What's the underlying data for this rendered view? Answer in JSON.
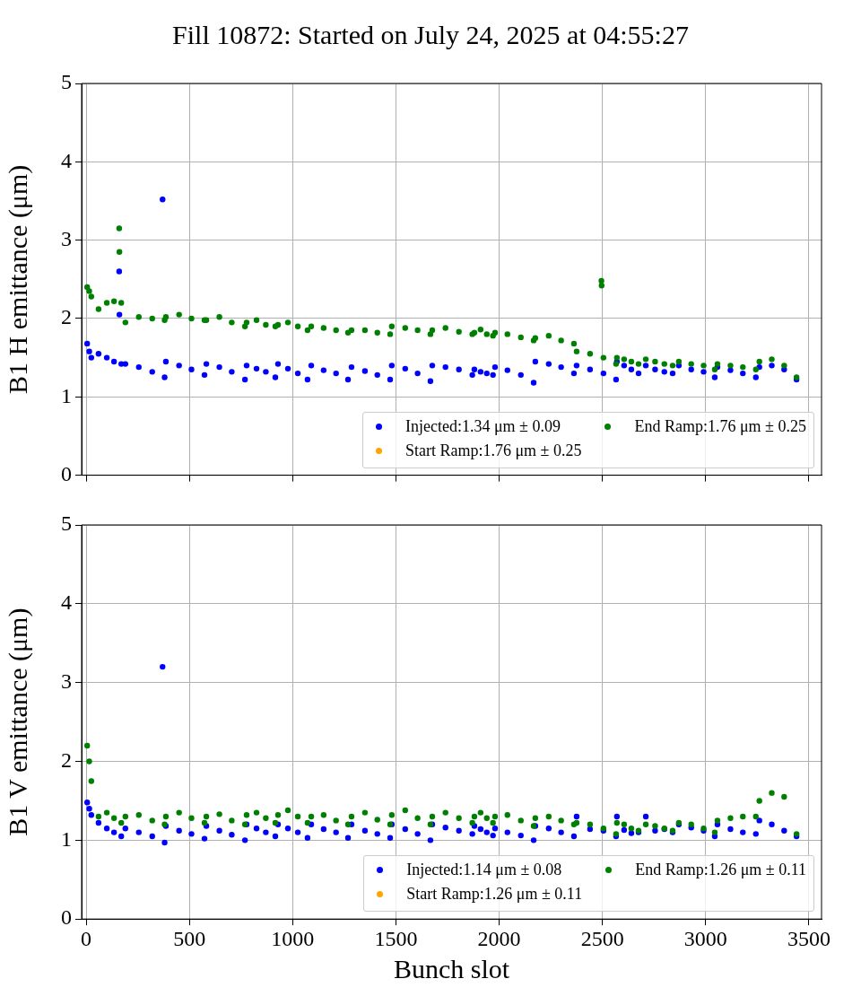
{
  "chart_data": [
    {
      "type": "scatter",
      "title": "Fill 10872: Started on July 24, 2025 at 04:55:27",
      "ylabel": "B1 H emittance (μm)",
      "xlim": [
        -22,
        3561
      ],
      "xticks": [
        {
          "value": 0,
          "label": null
        },
        {
          "value": 500,
          "label": null
        },
        {
          "value": 1000,
          "label": null
        },
        {
          "value": 1500,
          "label": null
        },
        {
          "value": 2000,
          "label": null
        },
        {
          "value": 2500,
          "label": null
        },
        {
          "value": 3000,
          "label": null
        },
        {
          "value": 3500,
          "label": null
        }
      ],
      "ylim": [
        0,
        5
      ],
      "yticks": [
        0,
        1,
        2,
        3,
        4,
        5
      ],
      "tick_labels": "y",
      "grid": true,
      "legend": "bottom right",
      "marker": "circle",
      "x": [
        5,
        15,
        25,
        60,
        100,
        135,
        170,
        190,
        255,
        320,
        380,
        386,
        450,
        510,
        573,
        582,
        645,
        705,
        769,
        777,
        825,
        870,
        916,
        929,
        977,
        1025,
        1072,
        1090,
        1150,
        1210,
        1268,
        1285,
        1350,
        1410,
        1472,
        1480,
        1545,
        1605,
        1667,
        1676,
        1740,
        1805,
        1870,
        1880,
        1910,
        1940,
        1970,
        1980,
        2040,
        2105,
        2167,
        2175,
        2240,
        2300,
        2362,
        2375,
        2440,
        2505,
        2566,
        2570,
        2605,
        2640,
        2675,
        2710,
        2755,
        2800,
        2840,
        2870,
        2930,
        2990,
        3044,
        3057,
        3120,
        3180,
        3243,
        3260,
        3320,
        3380,
        3440,
        160,
        161,
        370,
        2495,
        2496
      ],
      "series": [
        {
          "name": "Injected:1.34 μm ± 0.09",
          "color": "#0000ff",
          "values": [
            1.68,
            1.58,
            1.5,
            1.55,
            1.5,
            1.45,
            1.42,
            1.42,
            1.38,
            1.32,
            1.25,
            1.45,
            1.4,
            1.35,
            1.28,
            1.42,
            1.38,
            1.32,
            1.22,
            1.4,
            1.36,
            1.32,
            1.25,
            1.42,
            1.36,
            1.3,
            1.22,
            1.4,
            1.34,
            1.3,
            1.22,
            1.38,
            1.33,
            1.28,
            1.22,
            1.4,
            1.36,
            1.3,
            1.2,
            1.4,
            1.38,
            1.35,
            1.28,
            1.35,
            1.32,
            1.3,
            1.28,
            1.38,
            1.34,
            1.28,
            1.18,
            1.45,
            1.42,
            1.38,
            1.3,
            1.4,
            1.35,
            1.3,
            1.22,
            1.45,
            1.4,
            1.35,
            1.3,
            1.4,
            1.35,
            1.32,
            1.3,
            1.4,
            1.35,
            1.32,
            1.25,
            1.38,
            1.34,
            1.3,
            1.25,
            1.38,
            1.4,
            1.35,
            1.22,
            2.6,
            2.05,
            3.52,
            null,
            null
          ]
        },
        {
          "name": "Start Ramp:1.76 μm ± 0.25",
          "color": "#ffa500",
          "values": [
            null,
            null,
            null,
            null,
            null,
            null,
            null,
            null,
            null,
            null,
            null,
            null,
            null,
            null,
            null,
            null,
            null,
            null,
            null,
            null,
            null,
            null,
            null,
            null,
            null,
            null,
            null,
            null,
            null,
            null,
            null,
            null,
            null,
            null,
            null,
            null,
            null,
            null,
            null,
            null,
            null,
            null,
            null,
            null,
            null,
            null,
            null,
            null,
            null,
            null,
            null,
            null,
            null,
            null,
            null,
            null,
            null,
            null,
            null,
            null,
            null,
            null,
            null,
            null,
            null,
            null,
            null,
            null,
            null,
            null,
            null,
            null,
            null,
            null,
            null,
            null,
            null,
            null,
            null,
            null,
            null,
            null,
            null,
            null
          ]
        },
        {
          "name": "End Ramp:1.76 μm ± 0.25",
          "color": "#008000",
          "values": [
            2.4,
            2.35,
            2.28,
            2.12,
            2.2,
            2.22,
            2.2,
            1.95,
            2.02,
            2.0,
            1.98,
            2.02,
            2.05,
            2.0,
            1.98,
            1.98,
            2.02,
            1.95,
            1.9,
            1.95,
            1.98,
            1.92,
            1.9,
            1.92,
            1.95,
            1.9,
            1.85,
            1.9,
            1.88,
            1.85,
            1.82,
            1.85,
            1.85,
            1.82,
            1.8,
            1.9,
            1.88,
            1.85,
            1.8,
            1.85,
            1.88,
            1.83,
            1.8,
            1.82,
            1.86,
            1.8,
            1.78,
            1.82,
            1.8,
            1.76,
            1.72,
            1.75,
            1.78,
            1.72,
            1.68,
            1.58,
            1.55,
            1.5,
            1.42,
            1.5,
            1.48,
            1.45,
            1.42,
            1.48,
            1.45,
            1.42,
            1.4,
            1.45,
            1.42,
            1.4,
            1.35,
            1.42,
            1.4,
            1.38,
            1.35,
            1.45,
            1.48,
            1.4,
            1.25,
            3.15,
            2.85,
            null,
            2.48,
            2.42
          ]
        }
      ]
    },
    {
      "type": "scatter",
      "xlabel": "Bunch slot",
      "ylabel": "B1 V emittance (μm)",
      "xlim": [
        -22,
        3561
      ],
      "xticks": [
        0,
        500,
        1000,
        1500,
        2000,
        2500,
        3000,
        3500
      ],
      "ylim": [
        0,
        5
      ],
      "yticks": [
        0,
        1,
        2,
        3,
        4,
        5
      ],
      "grid": true,
      "legend": "bottom right",
      "marker": "circle",
      "x": [
        5,
        15,
        25,
        60,
        100,
        135,
        170,
        190,
        255,
        320,
        380,
        386,
        450,
        510,
        573,
        582,
        645,
        705,
        769,
        777,
        825,
        870,
        916,
        929,
        977,
        1025,
        1072,
        1090,
        1150,
        1210,
        1268,
        1285,
        1350,
        1410,
        1472,
        1480,
        1545,
        1605,
        1667,
        1676,
        1740,
        1805,
        1870,
        1880,
        1910,
        1940,
        1970,
        1980,
        2040,
        2105,
        2167,
        2175,
        2240,
        2300,
        2362,
        2375,
        2440,
        2505,
        2566,
        2570,
        2605,
        2640,
        2675,
        2710,
        2755,
        2800,
        2840,
        2870,
        2930,
        2990,
        3044,
        3057,
        3120,
        3180,
        3243,
        3260,
        3320,
        3380,
        3440,
        370
      ],
      "series": [
        {
          "name": "Injected:1.14 μm ± 0.08",
          "color": "#0000ff",
          "values": [
            1.48,
            1.4,
            1.32,
            1.22,
            1.15,
            1.1,
            1.05,
            1.15,
            1.1,
            1.05,
            0.97,
            1.18,
            1.12,
            1.08,
            1.02,
            1.18,
            1.12,
            1.07,
            1.0,
            1.2,
            1.15,
            1.1,
            1.05,
            1.2,
            1.15,
            1.1,
            1.03,
            1.2,
            1.14,
            1.1,
            1.03,
            1.2,
            1.12,
            1.08,
            1.03,
            1.2,
            1.14,
            1.08,
            1.0,
            1.2,
            1.16,
            1.12,
            1.08,
            1.18,
            1.14,
            1.1,
            1.06,
            1.15,
            1.1,
            1.06,
            1.0,
            1.18,
            1.15,
            1.1,
            1.05,
            1.3,
            1.14,
            1.12,
            1.05,
            1.3,
            1.13,
            1.09,
            1.1,
            1.3,
            1.12,
            1.14,
            1.1,
            1.2,
            1.16,
            1.12,
            1.05,
            1.2,
            1.14,
            1.1,
            1.08,
            1.25,
            1.2,
            1.12,
            1.05,
            3.2
          ]
        },
        {
          "name": "Start Ramp:1.26 μm ± 0.11",
          "color": "#ffa500",
          "values": [
            null,
            null,
            null,
            null,
            null,
            null,
            null,
            null,
            null,
            null,
            null,
            null,
            null,
            null,
            null,
            null,
            null,
            null,
            null,
            null,
            null,
            null,
            null,
            null,
            null,
            null,
            null,
            null,
            null,
            null,
            null,
            null,
            null,
            null,
            null,
            null,
            null,
            null,
            null,
            null,
            null,
            null,
            null,
            null,
            null,
            null,
            null,
            null,
            null,
            null,
            null,
            null,
            null,
            null,
            null,
            null,
            null,
            null,
            null,
            null,
            null,
            null,
            null,
            null,
            null,
            null,
            null,
            null,
            null,
            null,
            null,
            null,
            null,
            null,
            null,
            null,
            null,
            null,
            null,
            null
          ]
        },
        {
          "name": "End Ramp:1.26 μm ± 0.11",
          "color": "#008000",
          "values": [
            2.2,
            2.0,
            1.75,
            1.3,
            1.35,
            1.28,
            1.22,
            1.3,
            1.32,
            1.25,
            1.2,
            1.3,
            1.35,
            1.28,
            1.22,
            1.3,
            1.33,
            1.25,
            1.2,
            1.32,
            1.35,
            1.28,
            1.22,
            1.32,
            1.38,
            1.3,
            1.22,
            1.3,
            1.32,
            1.25,
            1.2,
            1.3,
            1.35,
            1.26,
            1.2,
            1.32,
            1.38,
            1.28,
            1.2,
            1.3,
            1.35,
            1.28,
            1.22,
            1.3,
            1.35,
            1.28,
            1.22,
            1.3,
            1.32,
            1.25,
            1.18,
            1.28,
            1.3,
            1.25,
            1.2,
            1.22,
            1.2,
            1.15,
            1.08,
            1.22,
            1.2,
            1.15,
            1.12,
            1.2,
            1.18,
            1.15,
            1.12,
            1.22,
            1.2,
            1.15,
            1.1,
            1.25,
            1.28,
            1.3,
            1.3,
            1.5,
            1.6,
            1.55,
            1.08,
            null
          ]
        }
      ]
    }
  ]
}
